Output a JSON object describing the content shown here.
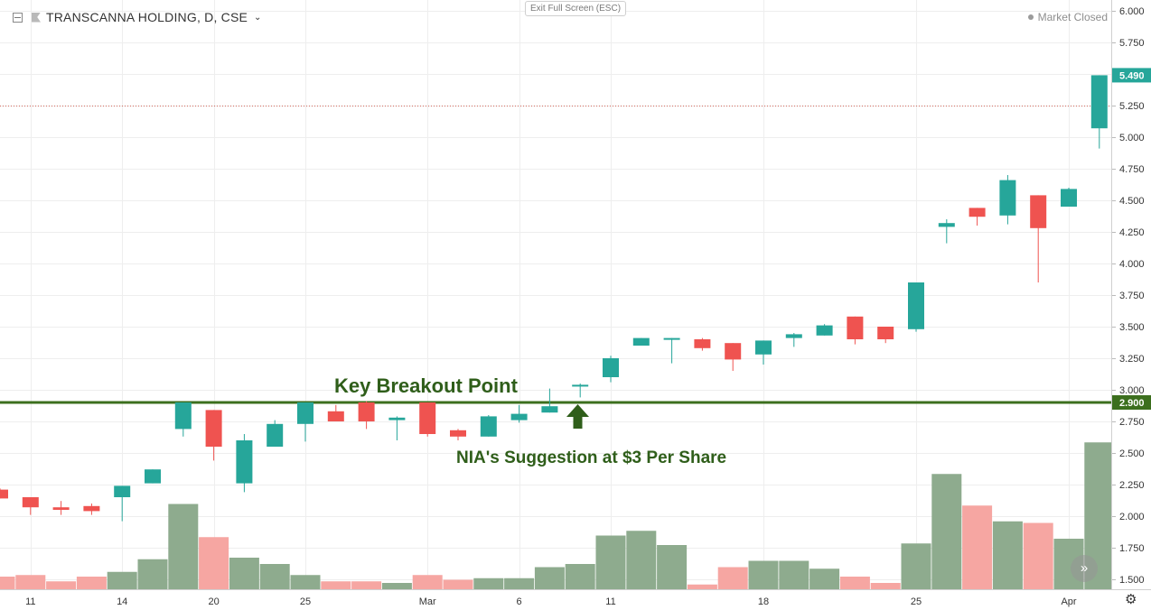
{
  "header": {
    "symbol_title": "TRANSCANNA HOLDING, D, CSE",
    "exit_fullscreen_label": "Exit Full Screen (ESC)",
    "market_status": "Market Closed"
  },
  "colors": {
    "up": "#26a69a",
    "down": "#ef5350",
    "volume_up": "#8eab8e",
    "volume_down": "#f6a6a2",
    "breakout_line": "#3c6f1e",
    "annotation_text": "#2f5e1a",
    "grid": "#eeeeee",
    "axis_text": "#333333"
  },
  "chart_data": {
    "type": "candlestick",
    "symbol": "TRANSCANNA HOLDING",
    "interval": "D",
    "exchange": "CSE",
    "y_axis": {
      "ticks": [
        "6.000",
        "5.750",
        "5.500",
        "5.250",
        "5.000",
        "4.750",
        "4.500",
        "4.250",
        "4.000",
        "3.750",
        "3.500",
        "3.250",
        "3.000",
        "2.750",
        "2.500",
        "2.250",
        "2.000",
        "1.750",
        "1.500"
      ],
      "range": [
        1.47,
        6.04
      ],
      "last_price_label": "5.490",
      "breakout_label": "2.900"
    },
    "x_axis": {
      "labels": [
        {
          "index": 1,
          "text": "11"
        },
        {
          "index": 4,
          "text": "14"
        },
        {
          "index": 7,
          "text": "20"
        },
        {
          "index": 10,
          "text": "25"
        },
        {
          "index": 14,
          "text": "Mar"
        },
        {
          "index": 17,
          "text": "6"
        },
        {
          "index": 20,
          "text": "11"
        },
        {
          "index": 25,
          "text": "18"
        },
        {
          "index": 30,
          "text": "25"
        },
        {
          "index": 35,
          "text": "Apr"
        }
      ]
    },
    "breakout_level": 2.9,
    "previous_close_level": 5.25,
    "candles": [
      {
        "o": 2.21,
        "h": 2.22,
        "l": 2.14,
        "c": 2.14
      },
      {
        "o": 2.15,
        "h": 2.15,
        "l": 2.01,
        "c": 2.07
      },
      {
        "o": 2.07,
        "h": 2.12,
        "l": 2.01,
        "c": 2.05
      },
      {
        "o": 2.08,
        "h": 2.1,
        "l": 2.01,
        "c": 2.04
      },
      {
        "o": 2.15,
        "h": 2.24,
        "l": 1.96,
        "c": 2.24
      },
      {
        "o": 2.26,
        "h": 2.37,
        "l": 2.26,
        "c": 2.37
      },
      {
        "o": 2.69,
        "h": 2.9,
        "l": 2.63,
        "c": 2.9
      },
      {
        "o": 2.84,
        "h": 2.84,
        "l": 2.44,
        "c": 2.55
      },
      {
        "o": 2.26,
        "h": 2.65,
        "l": 2.19,
        "c": 2.6
      },
      {
        "o": 2.55,
        "h": 2.76,
        "l": 2.55,
        "c": 2.73
      },
      {
        "o": 2.73,
        "h": 2.9,
        "l": 2.59,
        "c": 2.9
      },
      {
        "o": 2.83,
        "h": 2.88,
        "l": 2.75,
        "c": 2.75
      },
      {
        "o": 2.9,
        "h": 2.91,
        "l": 2.69,
        "c": 2.75
      },
      {
        "o": 2.76,
        "h": 2.79,
        "l": 2.6,
        "c": 2.78
      },
      {
        "o": 2.9,
        "h": 2.9,
        "l": 2.63,
        "c": 2.65
      },
      {
        "o": 2.68,
        "h": 2.69,
        "l": 2.6,
        "c": 2.63
      },
      {
        "o": 2.63,
        "h": 2.8,
        "l": 2.63,
        "c": 2.79
      },
      {
        "o": 2.76,
        "h": 2.88,
        "l": 2.74,
        "c": 2.81
      },
      {
        "o": 2.82,
        "h": 3.01,
        "l": 2.82,
        "c": 2.87
      },
      {
        "o": 3.03,
        "h": 3.05,
        "l": 2.94,
        "c": 3.04
      },
      {
        "o": 3.1,
        "h": 3.27,
        "l": 3.06,
        "c": 3.25
      },
      {
        "o": 3.35,
        "h": 3.41,
        "l": 3.35,
        "c": 3.41
      },
      {
        "o": 3.4,
        "h": 3.41,
        "l": 3.21,
        "c": 3.41
      },
      {
        "o": 3.4,
        "h": 3.41,
        "l": 3.31,
        "c": 3.33
      },
      {
        "o": 3.37,
        "h": 3.37,
        "l": 3.15,
        "c": 3.24
      },
      {
        "o": 3.28,
        "h": 3.39,
        "l": 3.2,
        "c": 3.39
      },
      {
        "o": 3.41,
        "h": 3.45,
        "l": 3.34,
        "c": 3.44
      },
      {
        "o": 3.43,
        "h": 3.52,
        "l": 3.43,
        "c": 3.51
      },
      {
        "o": 3.58,
        "h": 3.58,
        "l": 3.36,
        "c": 3.4
      },
      {
        "o": 3.5,
        "h": 3.5,
        "l": 3.37,
        "c": 3.4
      },
      {
        "o": 3.48,
        "h": 3.85,
        "l": 3.46,
        "c": 3.85
      },
      {
        "o": 4.29,
        "h": 4.35,
        "l": 4.16,
        "c": 4.32
      },
      {
        "o": 4.44,
        "h": 4.44,
        "l": 4.3,
        "c": 4.37
      },
      {
        "o": 4.38,
        "h": 4.7,
        "l": 4.31,
        "c": 4.66
      },
      {
        "o": 4.54,
        "h": 4.54,
        "l": 3.85,
        "c": 4.28
      },
      {
        "o": 4.45,
        "h": 4.6,
        "l": 4.45,
        "c": 4.59
      },
      {
        "o": 5.07,
        "h": 5.49,
        "l": 4.91,
        "c": 5.49
      }
    ],
    "volume_relative": [
      0.08,
      0.09,
      0.05,
      0.08,
      0.11,
      0.19,
      0.54,
      0.33,
      0.2,
      0.16,
      0.09,
      0.05,
      0.05,
      0.04,
      0.09,
      0.06,
      0.07,
      0.07,
      0.14,
      0.16,
      0.34,
      0.37,
      0.28,
      0.03,
      0.14,
      0.18,
      0.18,
      0.13,
      0.08,
      0.04,
      0.29,
      0.73,
      0.53,
      0.43,
      0.42,
      0.32,
      0.93
    ]
  },
  "annotations": {
    "breakout_title": "Key Breakout Point",
    "suggestion_text": "NIA's Suggestion at $3 Per Share"
  }
}
